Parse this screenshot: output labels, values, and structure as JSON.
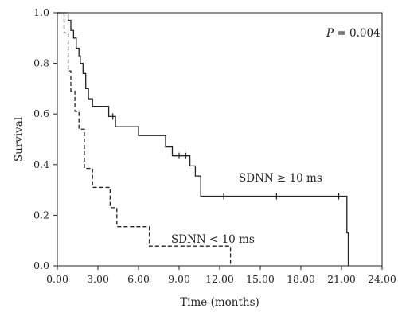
{
  "chart_data": {
    "type": "line",
    "xlabel": "Time (months)",
    "ylabel": "Survival",
    "xlim": [
      0,
      24
    ],
    "ylim": [
      0,
      1
    ],
    "x_ticks": [
      0,
      3,
      6,
      9,
      12,
      15,
      18,
      21,
      24
    ],
    "x_tick_labels": [
      "0.00",
      "3.00",
      "6.00",
      "9.00",
      "12.00",
      "15.00",
      "18.00",
      "21.00",
      "24.00"
    ],
    "y_ticks": [
      0,
      0.2,
      0.4,
      0.6,
      0.8,
      1.0
    ],
    "y_tick_labels": [
      "0.0",
      "0.2",
      "0.4",
      "0.6",
      "0.8",
      "1.0"
    ],
    "grid": false,
    "step": true,
    "p_value_label": "P",
    "p_value_text": " = 0.004",
    "series": [
      {
        "name": "SDNN ≥ 10 ms",
        "line_style": "solid",
        "color": "#222222",
        "points": [
          [
            0,
            1.0
          ],
          [
            0.8,
            1.0
          ],
          [
            0.8,
            0.97
          ],
          [
            1.0,
            0.97
          ],
          [
            1.0,
            0.93
          ],
          [
            1.2,
            0.93
          ],
          [
            1.2,
            0.9
          ],
          [
            1.4,
            0.9
          ],
          [
            1.4,
            0.86
          ],
          [
            1.6,
            0.86
          ],
          [
            1.6,
            0.83
          ],
          [
            1.7,
            0.83
          ],
          [
            1.7,
            0.8
          ],
          [
            1.9,
            0.8
          ],
          [
            1.9,
            0.76
          ],
          [
            2.1,
            0.76
          ],
          [
            2.1,
            0.7
          ],
          [
            2.3,
            0.7
          ],
          [
            2.3,
            0.66
          ],
          [
            2.6,
            0.66
          ],
          [
            2.6,
            0.63
          ],
          [
            3.8,
            0.63
          ],
          [
            3.8,
            0.59
          ],
          [
            4.3,
            0.59
          ],
          [
            4.3,
            0.55
          ],
          [
            6.0,
            0.55
          ],
          [
            6.0,
            0.515
          ],
          [
            8.0,
            0.515
          ],
          [
            8.0,
            0.47
          ],
          [
            8.5,
            0.47
          ],
          [
            8.5,
            0.435
          ],
          [
            9.8,
            0.435
          ],
          [
            9.8,
            0.395
          ],
          [
            10.2,
            0.395
          ],
          [
            10.2,
            0.355
          ],
          [
            10.6,
            0.355
          ],
          [
            10.6,
            0.275
          ],
          [
            21.4,
            0.275
          ],
          [
            21.4,
            0.13
          ],
          [
            21.5,
            0.13
          ],
          [
            21.5,
            0.0
          ]
        ],
        "censored_x": [
          4.1,
          9.0,
          9.5,
          12.3,
          16.2,
          20.8
        ],
        "label": "SDNN ≥ 10 ms"
      },
      {
        "name": "SDNN < 10 ms",
        "line_style": "dashed",
        "color": "#222222",
        "points": [
          [
            0,
            1.0
          ],
          [
            0.5,
            1.0
          ],
          [
            0.5,
            0.92
          ],
          [
            0.8,
            0.92
          ],
          [
            0.8,
            0.77
          ],
          [
            1.0,
            0.77
          ],
          [
            1.0,
            0.69
          ],
          [
            1.3,
            0.69
          ],
          [
            1.3,
            0.61
          ],
          [
            1.6,
            0.61
          ],
          [
            1.6,
            0.54
          ],
          [
            2.0,
            0.54
          ],
          [
            2.0,
            0.385
          ],
          [
            2.6,
            0.385
          ],
          [
            2.6,
            0.31
          ],
          [
            3.9,
            0.31
          ],
          [
            3.9,
            0.23
          ],
          [
            4.4,
            0.23
          ],
          [
            4.4,
            0.155
          ],
          [
            6.8,
            0.155
          ],
          [
            6.8,
            0.078
          ],
          [
            12.8,
            0.078
          ],
          [
            12.8,
            0.0
          ]
        ],
        "censored_x": [],
        "label": "SDNN < 10 ms"
      }
    ]
  }
}
